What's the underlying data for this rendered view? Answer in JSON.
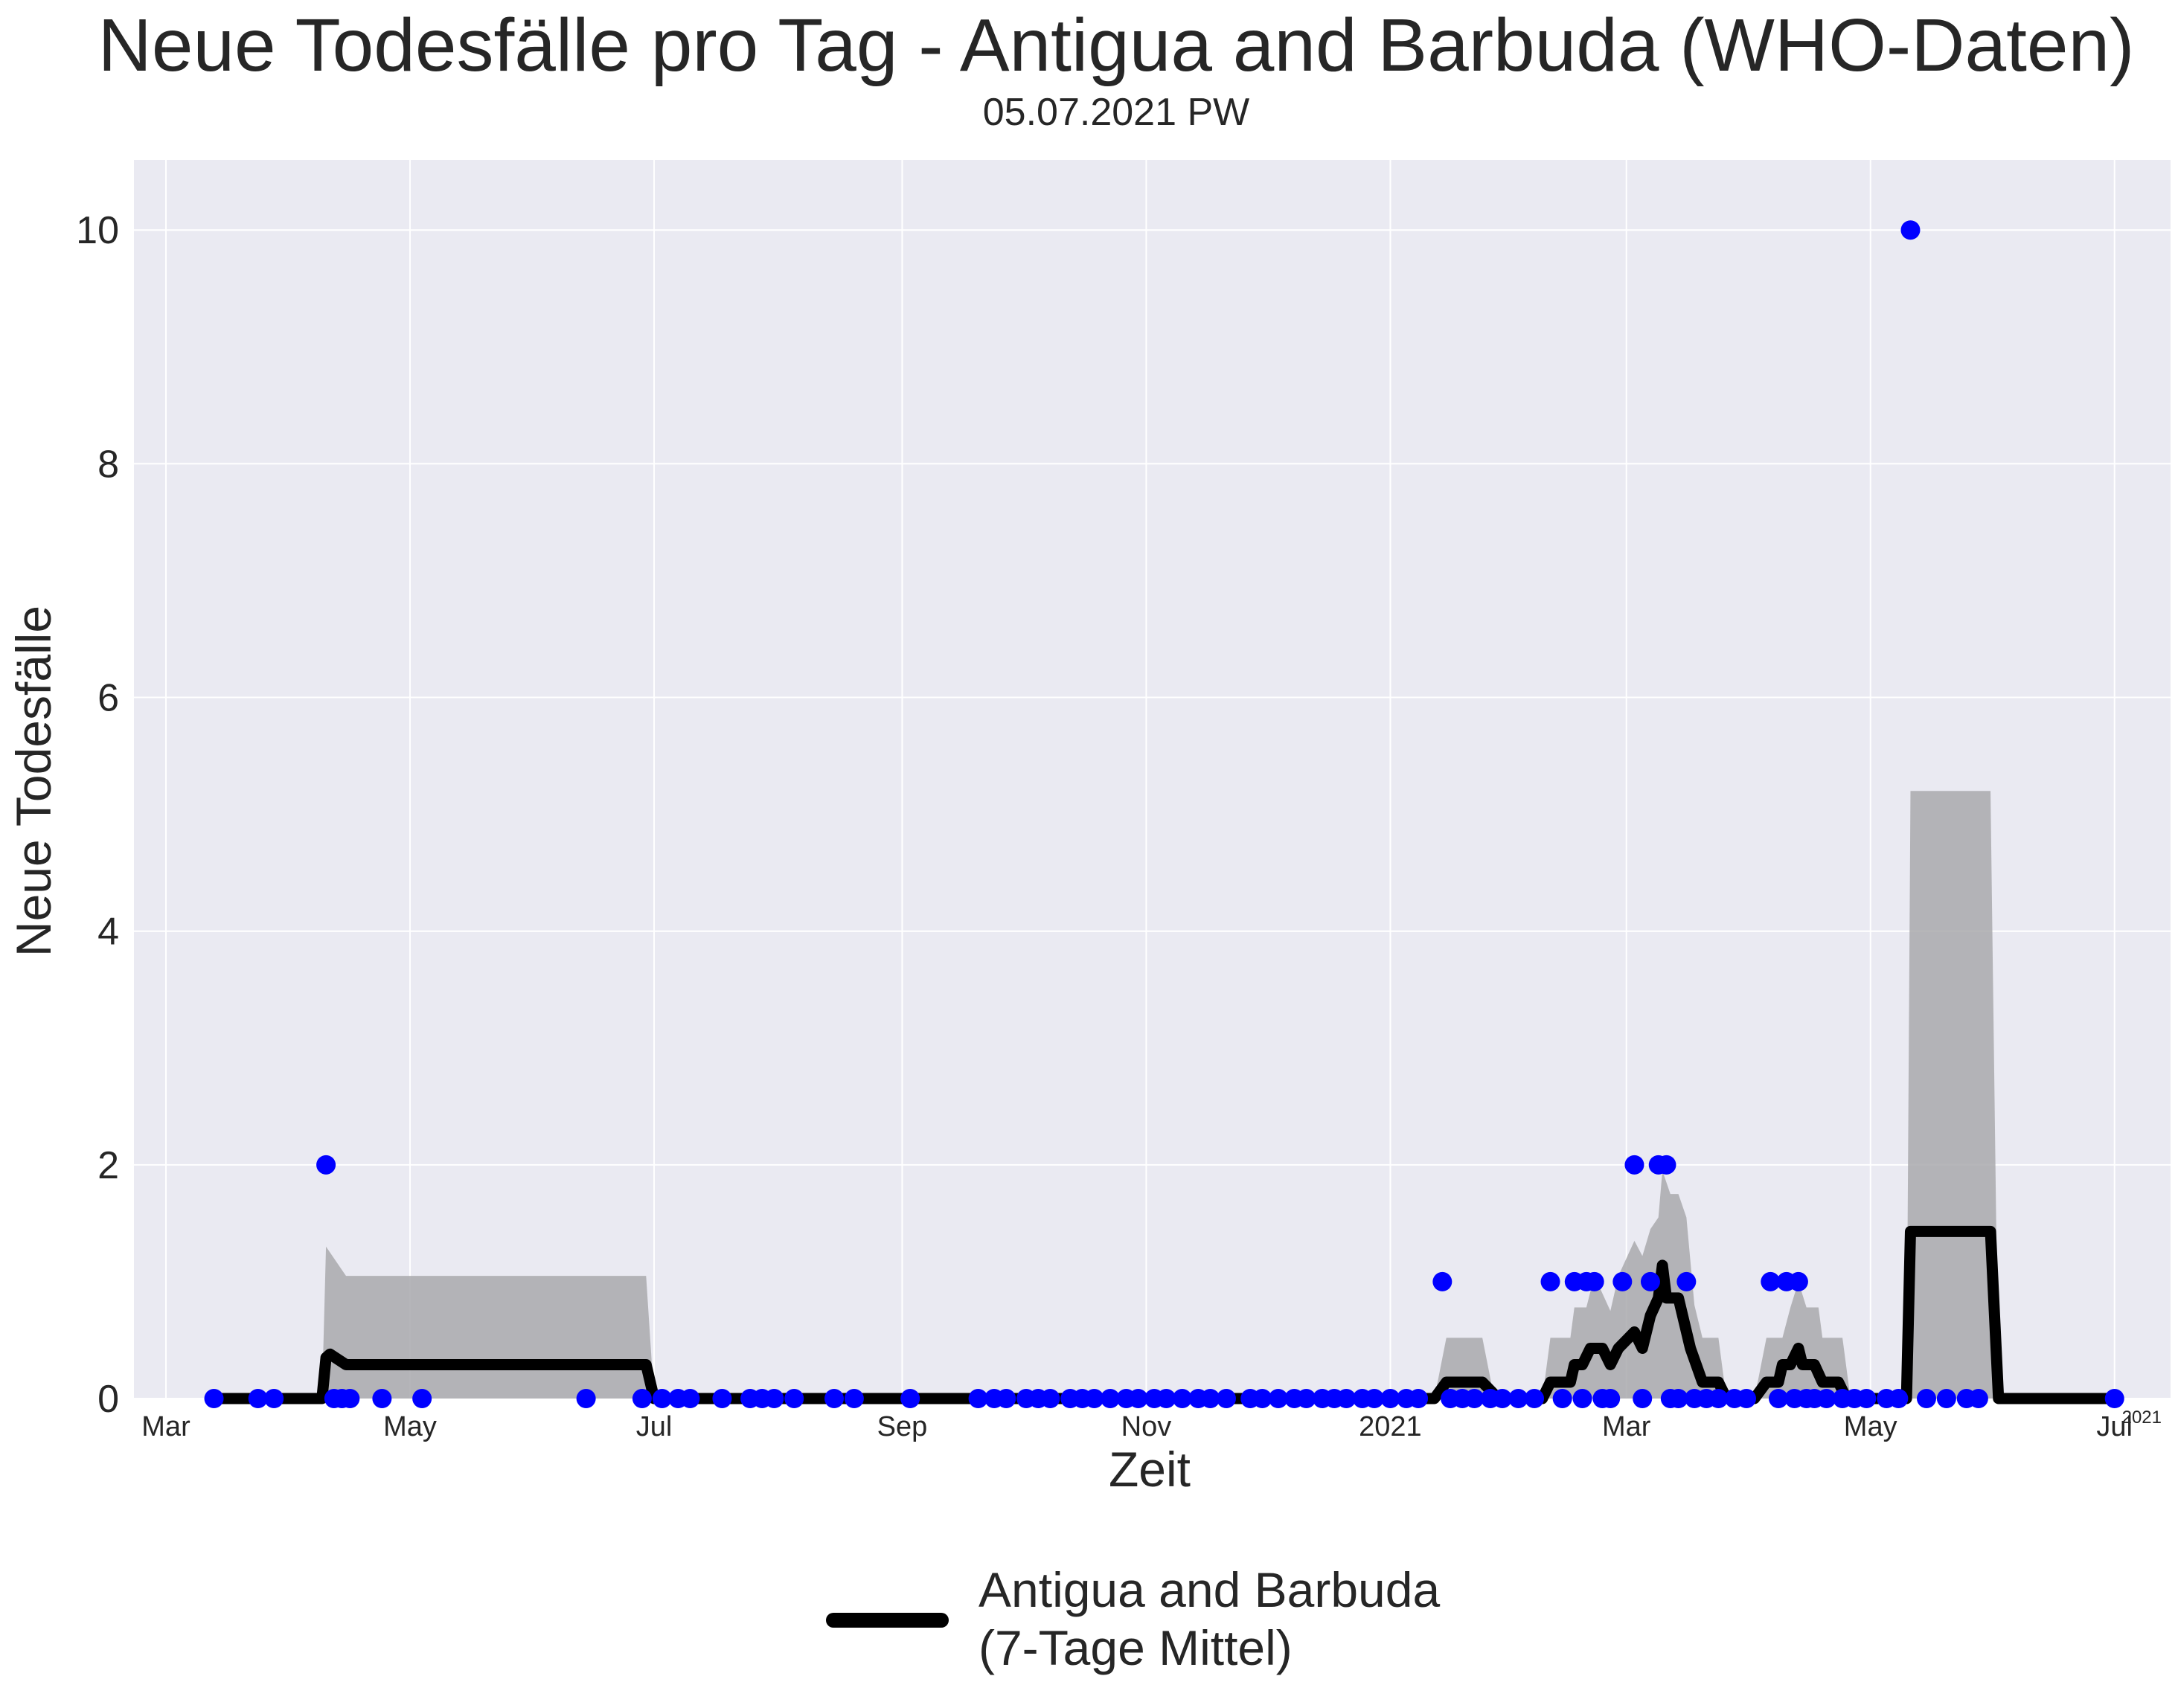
{
  "chart_data": {
    "type": "line",
    "title": "Neue Todesfälle pro Tag - Antigua and Barbuda (WHO-Daten)",
    "subtitle": "05.07.2021 PW",
    "xlabel": "Zeit",
    "ylabel": "Neue Todesfälle",
    "x_offset_label": "2021",
    "x_range": [
      "2020-02-22",
      "2021-07-15"
    ],
    "ylim": [
      0,
      10.6
    ],
    "grid": true,
    "legend_position": "bottom-center",
    "colors": {
      "plot_background": "#eaeaf2",
      "grid": "#ffffff",
      "points": "#0000ff",
      "line": "#000000",
      "band": "#a9a9ad"
    },
    "x_ticks": [
      {
        "date": "2020-03-01",
        "label": "Mar"
      },
      {
        "date": "2020-05-01",
        "label": "May"
      },
      {
        "date": "2020-07-01",
        "label": "Jul"
      },
      {
        "date": "2020-09-01",
        "label": "Sep"
      },
      {
        "date": "2020-11-01",
        "label": "Nov"
      },
      {
        "date": "2021-01-01",
        "label": "2021"
      },
      {
        "date": "2021-03-01",
        "label": "Mar"
      },
      {
        "date": "2021-05-01",
        "label": "May"
      },
      {
        "date": "2021-07-01",
        "label": "Jul"
      }
    ],
    "y_ticks": [
      0,
      2,
      4,
      6,
      8,
      10
    ],
    "legend": {
      "line1": "Antigua and Barbuda",
      "line2": "(7-Tage Mittel)"
    },
    "series": [
      {
        "kind": "daily_points",
        "points": [
          [
            "2020-03-13",
            0
          ],
          [
            "2020-03-24",
            0
          ],
          [
            "2020-03-28",
            0
          ],
          [
            "2020-04-10",
            2
          ],
          [
            "2020-04-12",
            0
          ],
          [
            "2020-04-14",
            0
          ],
          [
            "2020-04-16",
            0
          ],
          [
            "2020-04-24",
            0
          ],
          [
            "2020-05-04",
            0
          ],
          [
            "2020-06-14",
            0
          ],
          [
            "2020-06-28",
            0
          ],
          [
            "2020-07-03",
            0
          ],
          [
            "2020-07-07",
            0
          ],
          [
            "2020-07-10",
            0
          ],
          [
            "2020-07-18",
            0
          ],
          [
            "2020-07-25",
            0
          ],
          [
            "2020-07-28",
            0
          ],
          [
            "2020-07-31",
            0
          ],
          [
            "2020-08-05",
            0
          ],
          [
            "2020-08-15",
            0
          ],
          [
            "2020-08-20",
            0
          ],
          [
            "2020-09-03",
            0
          ],
          [
            "2020-09-20",
            0
          ],
          [
            "2020-09-24",
            0
          ],
          [
            "2020-09-27",
            0
          ],
          [
            "2020-10-02",
            0
          ],
          [
            "2020-10-05",
            0
          ],
          [
            "2020-10-08",
            0
          ],
          [
            "2020-10-13",
            0
          ],
          [
            "2020-10-16",
            0
          ],
          [
            "2020-10-19",
            0
          ],
          [
            "2020-10-23",
            0
          ],
          [
            "2020-10-27",
            0
          ],
          [
            "2020-10-30",
            0
          ],
          [
            "2020-11-03",
            0
          ],
          [
            "2020-11-06",
            0
          ],
          [
            "2020-11-10",
            0
          ],
          [
            "2020-11-14",
            0
          ],
          [
            "2020-11-17",
            0
          ],
          [
            "2020-11-21",
            0
          ],
          [
            "2020-11-27",
            0
          ],
          [
            "2020-11-30",
            0
          ],
          [
            "2020-12-04",
            0
          ],
          [
            "2020-12-08",
            0
          ],
          [
            "2020-12-11",
            0
          ],
          [
            "2020-12-15",
            0
          ],
          [
            "2020-12-18",
            0
          ],
          [
            "2020-12-21",
            0
          ],
          [
            "2020-12-25",
            0
          ],
          [
            "2020-12-28",
            0
          ],
          [
            "2021-01-01",
            0
          ],
          [
            "2021-01-05",
            0
          ],
          [
            "2021-01-08",
            0
          ],
          [
            "2021-01-14",
            1
          ],
          [
            "2021-01-16",
            0
          ],
          [
            "2021-01-19",
            0
          ],
          [
            "2021-01-22",
            0
          ],
          [
            "2021-01-26",
            0
          ],
          [
            "2021-01-29",
            0
          ],
          [
            "2021-02-02",
            0
          ],
          [
            "2021-02-06",
            0
          ],
          [
            "2021-02-10",
            1
          ],
          [
            "2021-02-13",
            0
          ],
          [
            "2021-02-16",
            1
          ],
          [
            "2021-02-18",
            0
          ],
          [
            "2021-02-19",
            1
          ],
          [
            "2021-02-21",
            1
          ],
          [
            "2021-02-23",
            0
          ],
          [
            "2021-02-25",
            0
          ],
          [
            "2021-02-28",
            1
          ],
          [
            "2021-03-03",
            2
          ],
          [
            "2021-03-05",
            0
          ],
          [
            "2021-03-07",
            1
          ],
          [
            "2021-03-09",
            2
          ],
          [
            "2021-03-11",
            2
          ],
          [
            "2021-03-12",
            0
          ],
          [
            "2021-03-14",
            0
          ],
          [
            "2021-03-16",
            1
          ],
          [
            "2021-03-18",
            0
          ],
          [
            "2021-03-21",
            0
          ],
          [
            "2021-03-24",
            0
          ],
          [
            "2021-03-28",
            0
          ],
          [
            "2021-03-31",
            0
          ],
          [
            "2021-04-06",
            1
          ],
          [
            "2021-04-08",
            0
          ],
          [
            "2021-04-10",
            1
          ],
          [
            "2021-04-12",
            0
          ],
          [
            "2021-04-13",
            1
          ],
          [
            "2021-04-15",
            0
          ],
          [
            "2021-04-17",
            0
          ],
          [
            "2021-04-20",
            0
          ],
          [
            "2021-04-24",
            0
          ],
          [
            "2021-04-27",
            0
          ],
          [
            "2021-04-30",
            0
          ],
          [
            "2021-05-05",
            0
          ],
          [
            "2021-05-08",
            0
          ],
          [
            "2021-05-11",
            10
          ],
          [
            "2021-05-15",
            0
          ],
          [
            "2021-05-20",
            0
          ],
          [
            "2021-05-25",
            0
          ],
          [
            "2021-05-28",
            0
          ],
          [
            "2021-07-01",
            0
          ]
        ]
      },
      {
        "kind": "rolling_mean",
        "name": "Antigua and Barbuda (7-Tage Mittel)",
        "points": [
          [
            "2020-03-13",
            0
          ],
          [
            "2020-04-09",
            0
          ],
          [
            "2020-04-10",
            0.35
          ],
          [
            "2020-04-11",
            0.38
          ],
          [
            "2020-04-15",
            0.29
          ],
          [
            "2020-06-29",
            0.29
          ],
          [
            "2020-07-01",
            0
          ],
          [
            "2021-01-12",
            0
          ],
          [
            "2021-01-15",
            0.14
          ],
          [
            "2021-01-24",
            0.14
          ],
          [
            "2021-01-28",
            0
          ],
          [
            "2021-02-08",
            0
          ],
          [
            "2021-02-10",
            0.14
          ],
          [
            "2021-02-15",
            0.14
          ],
          [
            "2021-02-16",
            0.29
          ],
          [
            "2021-02-18",
            0.29
          ],
          [
            "2021-02-20",
            0.43
          ],
          [
            "2021-02-23",
            0.43
          ],
          [
            "2021-02-25",
            0.29
          ],
          [
            "2021-02-27",
            0.43
          ],
          [
            "2021-03-03",
            0.57
          ],
          [
            "2021-03-05",
            0.43
          ],
          [
            "2021-03-07",
            0.71
          ],
          [
            "2021-03-09",
            0.86
          ],
          [
            "2021-03-10",
            1.14
          ],
          [
            "2021-03-11",
            0.86
          ],
          [
            "2021-03-14",
            0.86
          ],
          [
            "2021-03-17",
            0.43
          ],
          [
            "2021-03-20",
            0.14
          ],
          [
            "2021-03-24",
            0.14
          ],
          [
            "2021-03-26",
            0
          ],
          [
            "2021-04-02",
            0
          ],
          [
            "2021-04-05",
            0.14
          ],
          [
            "2021-04-08",
            0.14
          ],
          [
            "2021-04-09",
            0.29
          ],
          [
            "2021-04-11",
            0.29
          ],
          [
            "2021-04-13",
            0.43
          ],
          [
            "2021-04-14",
            0.29
          ],
          [
            "2021-04-17",
            0.29
          ],
          [
            "2021-04-19",
            0.14
          ],
          [
            "2021-04-23",
            0.14
          ],
          [
            "2021-04-25",
            0
          ],
          [
            "2021-05-10",
            0
          ],
          [
            "2021-05-11",
            1.43
          ],
          [
            "2021-05-31",
            1.43
          ],
          [
            "2021-06-02",
            0
          ],
          [
            "2021-07-01",
            0
          ]
        ]
      },
      {
        "kind": "confidence_band",
        "points": [
          [
            "2020-04-09",
            0,
            0
          ],
          [
            "2020-04-10",
            0,
            1.3
          ],
          [
            "2020-04-15",
            0,
            1.05
          ],
          [
            "2020-06-29",
            0,
            1.05
          ],
          [
            "2020-07-01",
            0,
            0
          ],
          [
            "2021-01-12",
            0,
            0
          ],
          [
            "2021-01-15",
            0,
            0.52
          ],
          [
            "2021-01-24",
            0,
            0.52
          ],
          [
            "2021-01-27",
            0,
            0
          ],
          [
            "2021-02-08",
            0,
            0
          ],
          [
            "2021-02-10",
            0,
            0.52
          ],
          [
            "2021-02-15",
            0,
            0.52
          ],
          [
            "2021-02-16",
            0,
            0.78
          ],
          [
            "2021-02-19",
            0,
            0.78
          ],
          [
            "2021-02-21",
            0,
            1.05
          ],
          [
            "2021-02-25",
            0,
            0.75
          ],
          [
            "2021-02-27",
            0,
            1.05
          ],
          [
            "2021-03-03",
            0,
            1.35
          ],
          [
            "2021-03-05",
            0,
            1.22
          ],
          [
            "2021-03-07",
            0,
            1.45
          ],
          [
            "2021-03-09",
            0,
            1.55
          ],
          [
            "2021-03-10",
            0,
            1.95
          ],
          [
            "2021-03-12",
            0,
            1.75
          ],
          [
            "2021-03-14",
            0,
            1.75
          ],
          [
            "2021-03-16",
            0,
            1.55
          ],
          [
            "2021-03-18",
            0,
            0.8
          ],
          [
            "2021-03-20",
            0,
            0.52
          ],
          [
            "2021-03-24",
            0,
            0.52
          ],
          [
            "2021-03-26",
            0,
            0
          ],
          [
            "2021-04-02",
            0,
            0
          ],
          [
            "2021-04-05",
            0,
            0.52
          ],
          [
            "2021-04-09",
            0,
            0.52
          ],
          [
            "2021-04-11",
            0,
            0.78
          ],
          [
            "2021-04-13",
            0,
            1.0
          ],
          [
            "2021-04-15",
            0,
            0.78
          ],
          [
            "2021-04-18",
            0,
            0.78
          ],
          [
            "2021-04-19",
            0,
            0.52
          ],
          [
            "2021-04-24",
            0,
            0.52
          ],
          [
            "2021-04-26",
            0,
            0
          ],
          [
            "2021-05-10",
            0,
            0
          ],
          [
            "2021-05-11",
            0,
            5.2
          ],
          [
            "2021-05-31",
            0,
            5.2
          ],
          [
            "2021-06-02",
            0,
            0
          ]
        ]
      }
    ]
  }
}
